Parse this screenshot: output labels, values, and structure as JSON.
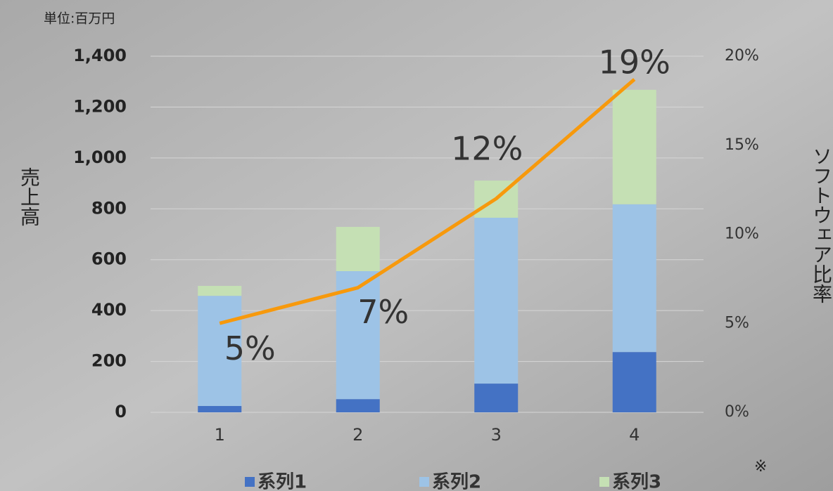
{
  "chart_data": {
    "type": "stacked_bar_line",
    "unit_label": "単位:百万円",
    "ylabel": "売上高",
    "y2label": "ソフトウェア比率",
    "annotation": "※",
    "categories": [
      "1",
      "2",
      "3",
      "4"
    ],
    "series": [
      {
        "name": "系列1",
        "color": "#4472c4",
        "values": [
          25,
          52,
          113,
          237
        ]
      },
      {
        "name": "系列2",
        "color": "#9dc3e6",
        "values": [
          433,
          503,
          652,
          581
        ]
      },
      {
        "name": "系列3",
        "color": "#c5e0b4",
        "values": [
          39,
          174,
          146,
          450
        ]
      },
      {
        "name": "ソフトウェア比率",
        "type": "line",
        "axis": "y2",
        "color": "#f7990c",
        "values": [
          5,
          7,
          12,
          18.7
        ],
        "value_labels": [
          "5%",
          "7%",
          "12%",
          "19%"
        ]
      }
    ],
    "ylim": [
      0,
      1400
    ],
    "yticks": [
      0,
      200,
      400,
      600,
      800,
      {
        "value": 1000,
        "label": "1,000"
      },
      {
        "value": 1200,
        "label": "1,200"
      },
      {
        "value": 1400,
        "label": "1,400"
      }
    ],
    "y2lim": [
      0,
      20
    ],
    "y2ticks": [
      {
        "value": 0,
        "label": "0%"
      },
      {
        "value": 5,
        "label": "5%"
      },
      {
        "value": 10,
        "label": "10%"
      },
      {
        "value": 15,
        "label": "15%"
      },
      {
        "value": 20,
        "label": "20%"
      }
    ],
    "grid": true,
    "legend": "bottom"
  }
}
